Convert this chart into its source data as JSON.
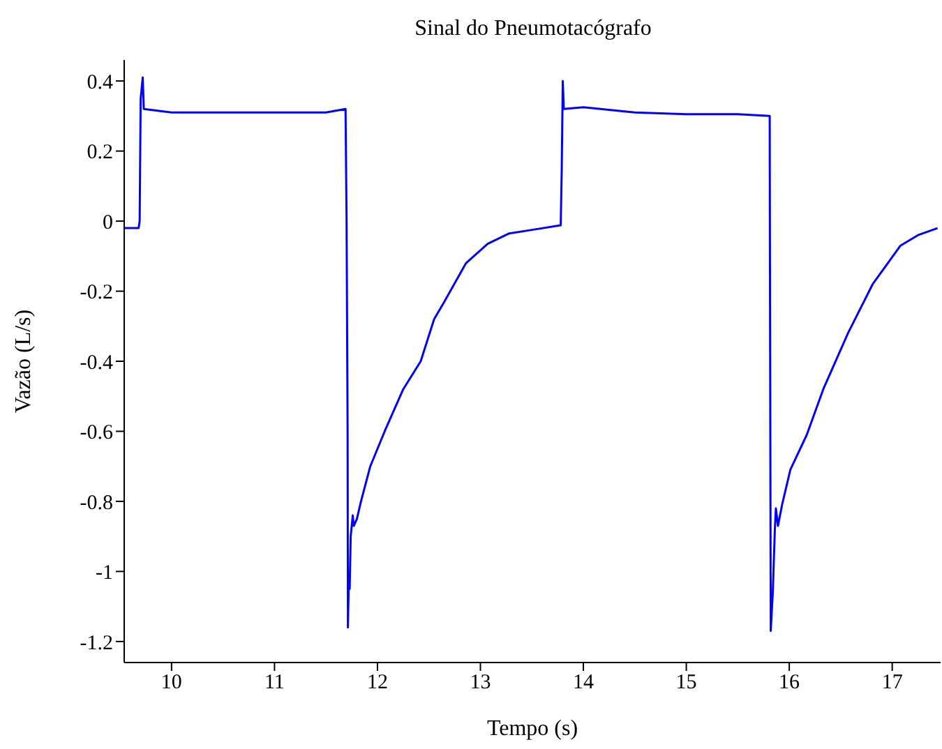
{
  "chart_data": {
    "type": "line",
    "title": "Sinal do Pneumotacógrafo",
    "xlabel": "Tempo (s)",
    "ylabel": "Vazão (L/s)",
    "x": [
      9.54,
      9.68,
      9.69,
      9.7,
      9.72,
      9.73,
      10.0,
      10.5,
      11.0,
      11.5,
      11.69,
      11.7,
      11.71,
      11.713,
      11.72,
      11.73,
      11.74,
      11.76,
      11.77,
      11.8,
      11.84,
      11.93,
      12.07,
      12.25,
      12.42,
      12.55,
      12.65,
      12.86,
      13.07,
      13.28,
      13.5,
      13.78,
      13.79,
      13.8,
      13.81,
      14.0,
      14.5,
      15.0,
      15.5,
      15.81,
      15.812,
      15.82,
      15.84,
      15.86,
      15.87,
      15.89,
      15.93,
      16.01,
      16.17,
      16.33,
      16.57,
      16.81,
      17.08,
      17.25,
      17.44
    ],
    "series": [
      {
        "color": "#0000ff",
        "values": [
          -0.02,
          -0.02,
          0.0,
          0.35,
          0.41,
          0.32,
          0.31,
          0.31,
          0.31,
          0.31,
          0.32,
          0.0,
          -0.6,
          -1.16,
          -1.05,
          -1.05,
          -0.9,
          -0.84,
          -0.87,
          -0.85,
          -0.8,
          -0.7,
          -0.6,
          -0.48,
          -0.4,
          -0.28,
          -0.23,
          -0.12,
          -0.065,
          -0.035,
          -0.025,
          -0.012,
          0.15,
          0.4,
          0.32,
          0.325,
          0.31,
          0.305,
          0.305,
          0.3,
          -0.05,
          -1.17,
          -1.06,
          -0.88,
          -0.82,
          -0.87,
          -0.81,
          -0.71,
          -0.61,
          -0.48,
          -0.32,
          -0.18,
          -0.07,
          -0.04,
          -0.02
        ]
      }
    ],
    "xlim": [
      9.54,
      17.47
    ],
    "xticks": [
      10,
      11,
      12,
      13,
      14,
      15,
      16,
      17
    ],
    "ylim": [
      -1.26,
      0.46
    ],
    "yticks": [
      -1.2,
      -1,
      -0.8,
      -0.6,
      -0.4,
      -0.2,
      0,
      0.2,
      0.4
    ],
    "grid": false,
    "legend": false,
    "marker": "none",
    "line_style": "solid"
  }
}
